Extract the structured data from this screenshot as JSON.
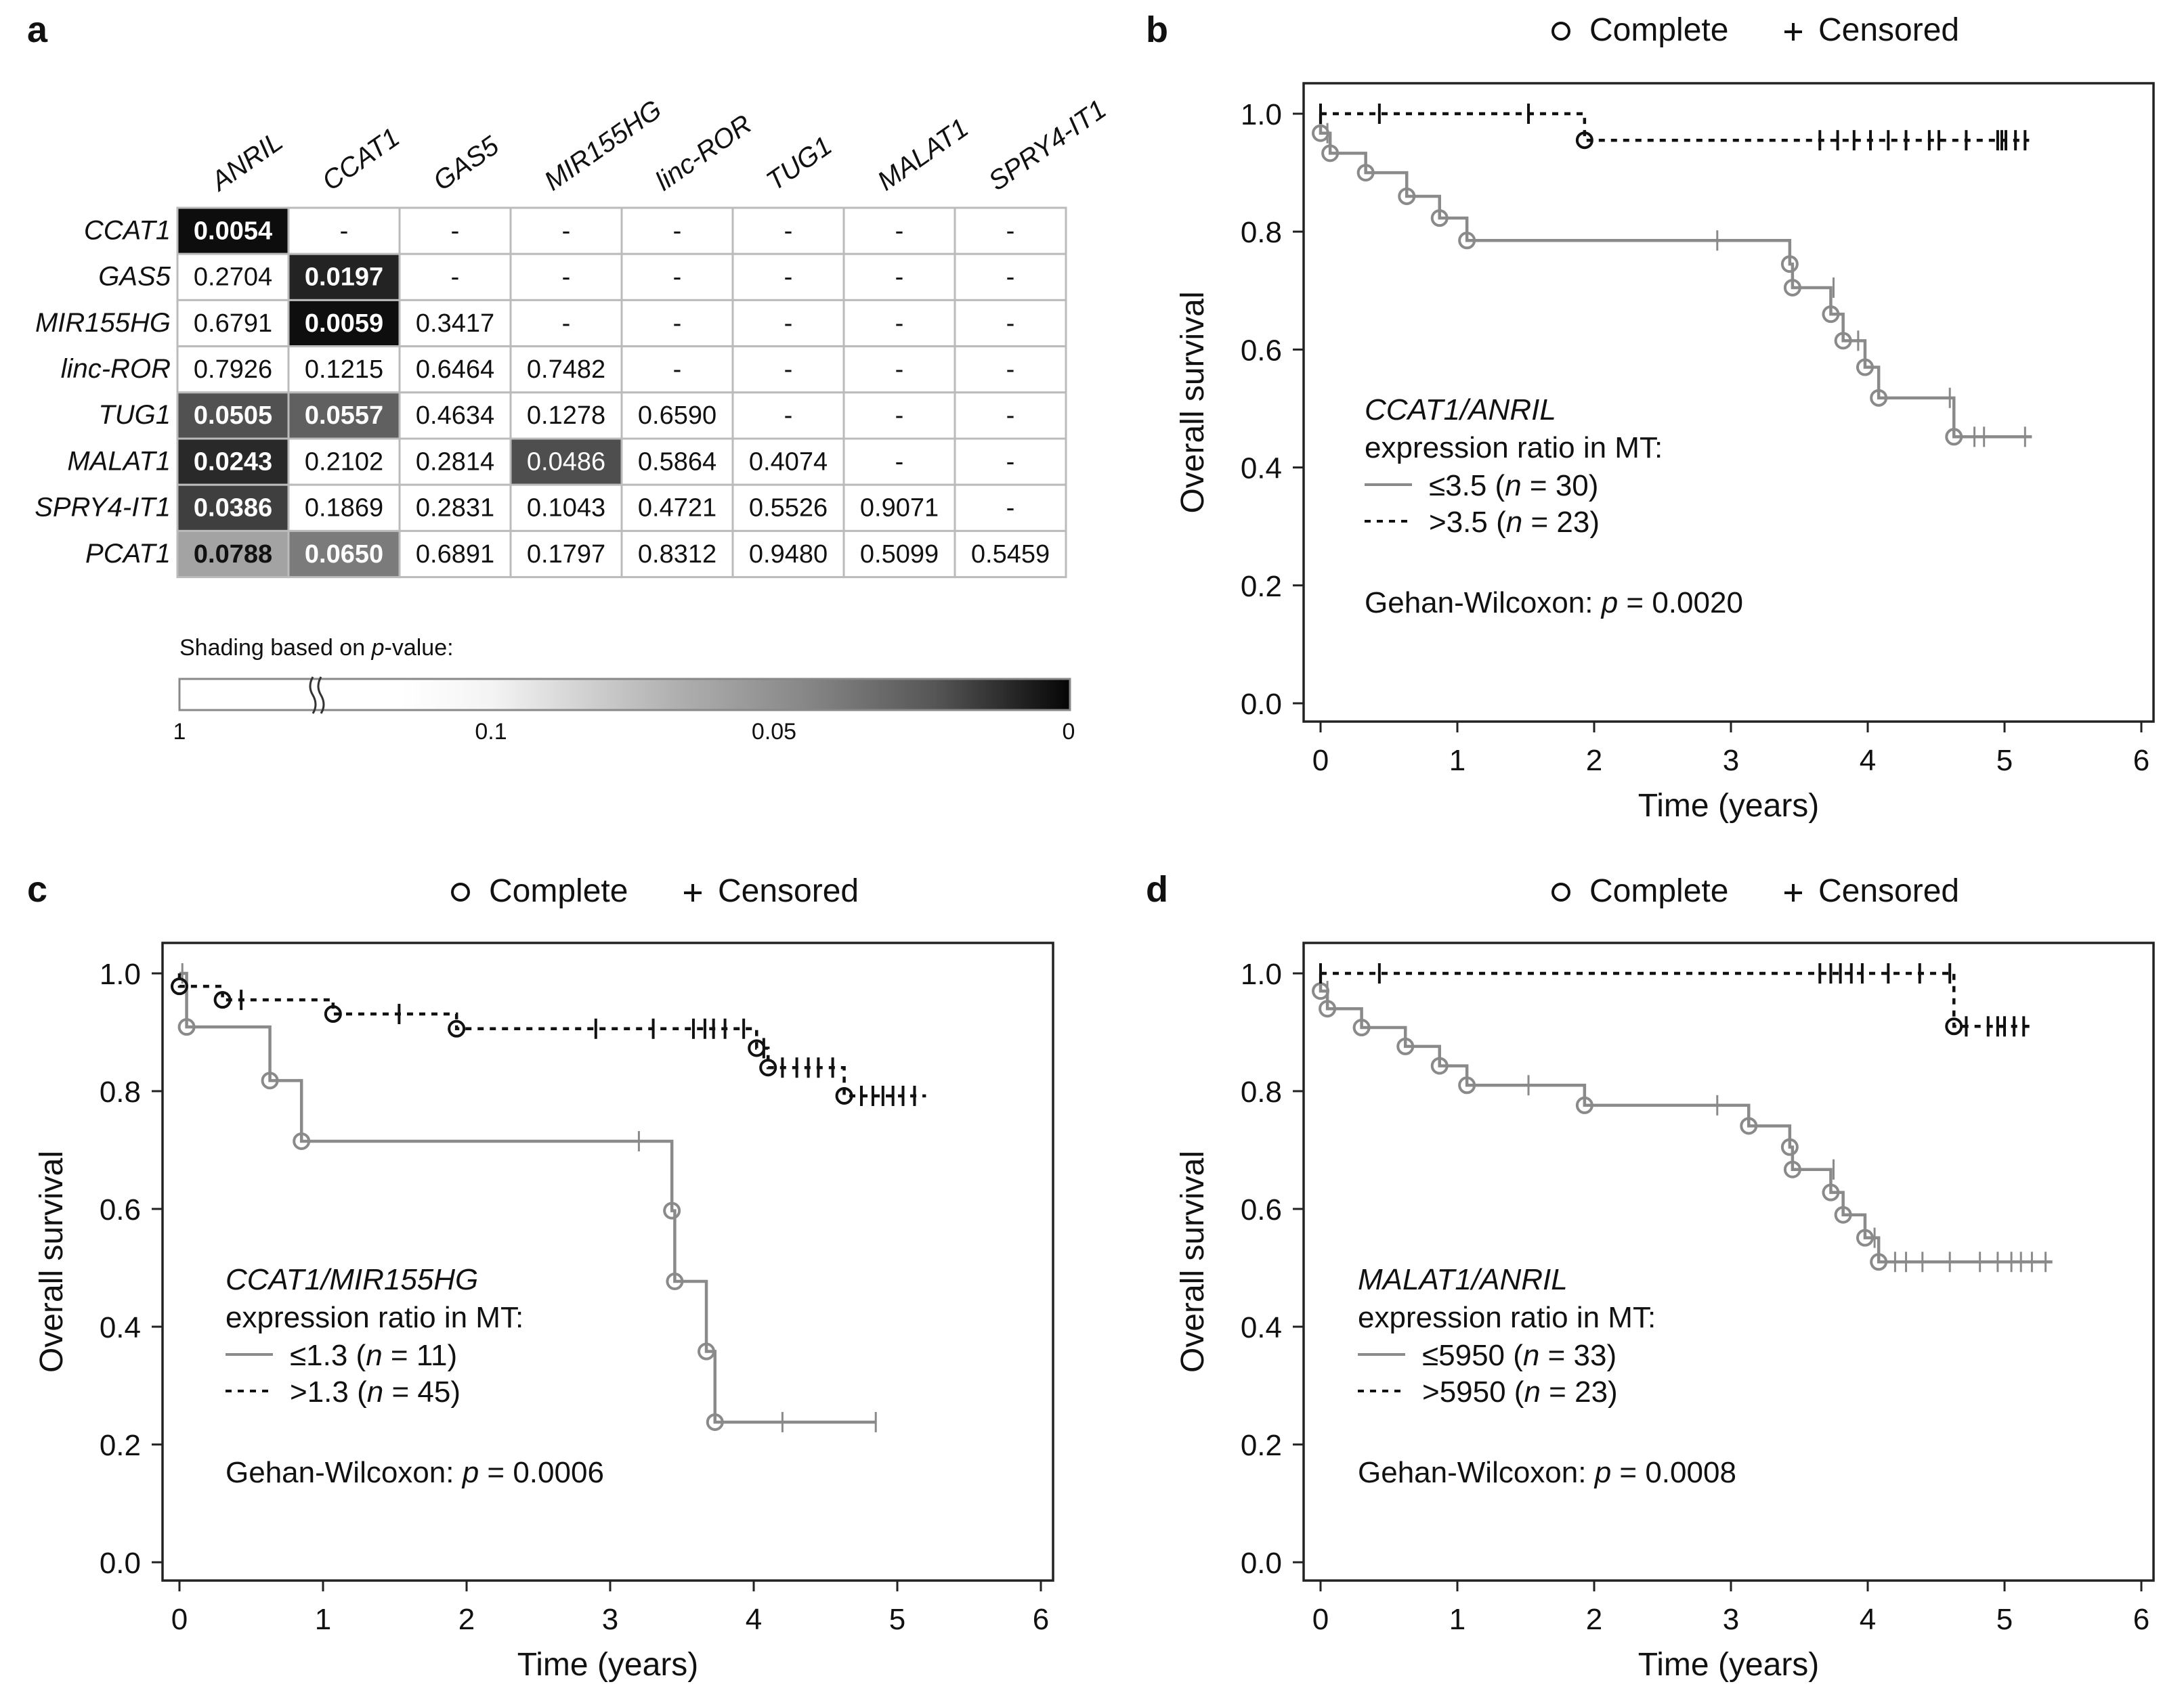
{
  "colors": {
    "low_group": "#8a8a8a",
    "high_group": "#111111",
    "axis": "#222222",
    "cell_border": "#bbbbbb",
    "text": "#111111"
  },
  "panel_a": {
    "label": "a",
    "column_headers": [
      "ANRIL",
      "CCAT1",
      "GAS5",
      "MIR155HG",
      "linc-ROR",
      "TUG1",
      "MALAT1",
      "SPRY4-IT1"
    ],
    "row_headers": [
      "CCAT1",
      "GAS5",
      "MIR155HG",
      "linc-ROR",
      "TUG1",
      "MALAT1",
      "SPRY4-IT1",
      "PCAT1"
    ],
    "cells": [
      [
        "0.0054",
        "-",
        "-",
        "-",
        "-",
        "-",
        "-",
        "-"
      ],
      [
        "0.2704",
        "0.0197",
        "-",
        "-",
        "-",
        "-",
        "-",
        "-"
      ],
      [
        "0.6791",
        "0.0059",
        "0.3417",
        "-",
        "-",
        "-",
        "-",
        "-"
      ],
      [
        "0.7926",
        "0.1215",
        "0.6464",
        "0.7482",
        "-",
        "-",
        "-",
        "-"
      ],
      [
        "0.0505",
        "0.0557",
        "0.4634",
        "0.1278",
        "0.6590",
        "-",
        "-",
        "-"
      ],
      [
        "0.0243",
        "0.2102",
        "0.2814",
        "0.0486",
        "0.5864",
        "0.4074",
        "-",
        "-"
      ],
      [
        "0.0386",
        "0.1869",
        "0.2831",
        "0.1043",
        "0.4721",
        "0.5526",
        "0.9071",
        "-"
      ],
      [
        "0.0788",
        "0.0650",
        "0.6891",
        "0.1797",
        "0.8312",
        "0.9480",
        "0.5099",
        "0.5459"
      ]
    ],
    "scale_title_prefix": "Shading based on ",
    "scale_title_var": "p",
    "scale_title_suffix": "-value:",
    "scale_ticks": [
      "1",
      "0.1",
      "0.05",
      "0"
    ]
  },
  "chart_data": [
    {
      "type": "line",
      "panel": "b",
      "title": "",
      "legend_complete": "Complete",
      "legend_censored": "Censored",
      "xlabel": "Time (years)",
      "ylabel": "Overall survival",
      "xlim": [
        0,
        6
      ],
      "ylim": [
        0,
        1
      ],
      "x_ticks": [
        0,
        1,
        2,
        3,
        4,
        5,
        6
      ],
      "y_ticks": [
        "0.0",
        "0.2",
        "0.4",
        "0.6",
        "0.8",
        "1.0"
      ],
      "annotation": {
        "ratio_name": "CCAT1/ANRIL",
        "ratio_label": "expression ratio in MT:",
        "low_label": "≤3.5 (",
        "low_n": "n",
        "low_rest": " = 30)",
        "high_label": ">3.5 (",
        "high_n": "n",
        "high_rest": " = 23)",
        "test_prefix": "Gehan-Wilcoxon: ",
        "test_p": "p",
        "test_rest": " = 0.0020"
      },
      "series": [
        {
          "name": "≤3.5 (n = 30)",
          "style": "solid",
          "steps": [
            [
              0,
              1
            ],
            [
              0,
              0.967
            ],
            [
              0.07,
              0.933
            ],
            [
              0.33,
              0.9
            ],
            [
              0.63,
              0.86
            ],
            [
              0.87,
              0.823
            ],
            [
              1.07,
              0.785
            ],
            [
              3.43,
              0.745
            ],
            [
              3.45,
              0.705
            ],
            [
              3.73,
              0.66
            ],
            [
              3.82,
              0.615
            ],
            [
              3.98,
              0.57
            ],
            [
              4.08,
              0.518
            ],
            [
              4.63,
              0.452
            ],
            [
              5.2,
              0.452
            ]
          ],
          "events": [
            [
              0,
              0.967
            ],
            [
              0.07,
              0.933
            ],
            [
              0.33,
              0.9
            ],
            [
              0.63,
              0.86
            ],
            [
              0.87,
              0.823
            ],
            [
              1.07,
              0.785
            ],
            [
              3.43,
              0.745
            ],
            [
              3.45,
              0.705
            ],
            [
              3.73,
              0.66
            ],
            [
              3.82,
              0.615
            ],
            [
              3.98,
              0.57
            ],
            [
              4.08,
              0.518
            ],
            [
              4.63,
              0.452
            ]
          ],
          "censored": [
            [
              0.05,
              0.967
            ],
            [
              2.9,
              0.785
            ],
            [
              3.75,
              0.705
            ],
            [
              3.93,
              0.615
            ],
            [
              4.6,
              0.518
            ],
            [
              4.78,
              0.452
            ],
            [
              4.85,
              0.452
            ],
            [
              5.15,
              0.452
            ]
          ]
        },
        {
          "name": ">3.5 (n = 23)",
          "style": "dashed",
          "steps": [
            [
              0,
              1
            ],
            [
              1.93,
              1
            ],
            [
              1.93,
              0.955
            ],
            [
              5.18,
              0.955
            ]
          ],
          "events": [
            [
              1.93,
              0.955
            ]
          ],
          "censored": [
            [
              0,
              1
            ],
            [
              0.43,
              1
            ],
            [
              1.52,
              1
            ],
            [
              3.65,
              0.955
            ],
            [
              3.78,
              0.955
            ],
            [
              3.9,
              0.955
            ],
            [
              4.02,
              0.955
            ],
            [
              4.15,
              0.955
            ],
            [
              4.28,
              0.955
            ],
            [
              4.45,
              0.955
            ],
            [
              4.52,
              0.955
            ],
            [
              4.72,
              0.955
            ],
            [
              4.95,
              0.955
            ],
            [
              4.98,
              0.955
            ],
            [
              5.01,
              0.955
            ],
            [
              5.08,
              0.955
            ],
            [
              5.15,
              0.955
            ]
          ]
        }
      ]
    },
    {
      "type": "line",
      "panel": "c",
      "title": "",
      "legend_complete": "Complete",
      "legend_censored": "Censored",
      "xlabel": "Time (years)",
      "ylabel": "Overall survival",
      "xlim": [
        0,
        6
      ],
      "ylim": [
        0,
        1
      ],
      "x_ticks": [
        0,
        1,
        2,
        3,
        4,
        5,
        6
      ],
      "y_ticks": [
        "0.0",
        "0.2",
        "0.4",
        "0.6",
        "0.8",
        "1.0"
      ],
      "annotation": {
        "ratio_name": "CCAT1/MIR155HG",
        "ratio_label": "expression ratio in MT:",
        "low_label": "≤1.3 (",
        "low_n": "n",
        "low_rest": " = 11)",
        "high_label": ">1.3 (",
        "high_n": "n",
        "high_rest": " = 45)",
        "test_prefix": "Gehan-Wilcoxon: ",
        "test_p": "p",
        "test_rest": " = 0.0006"
      },
      "series": [
        {
          "name": "≤1.3 (n = 11)",
          "style": "solid",
          "steps": [
            [
              0,
              1
            ],
            [
              0.05,
              0.909
            ],
            [
              0.63,
              0.818
            ],
            [
              0.85,
              0.715
            ],
            [
              3.43,
              0.597
            ],
            [
              3.45,
              0.477
            ],
            [
              3.67,
              0.358
            ],
            [
              3.73,
              0.238
            ],
            [
              4.85,
              0.238
            ]
          ],
          "events": [
            [
              0.05,
              0.909
            ],
            [
              0.63,
              0.818
            ],
            [
              0.85,
              0.715
            ],
            [
              3.43,
              0.597
            ],
            [
              3.45,
              0.477
            ],
            [
              3.67,
              0.358
            ],
            [
              3.73,
              0.238
            ]
          ],
          "censored": [
            [
              0.02,
              1
            ],
            [
              3.2,
              0.715
            ],
            [
              4.2,
              0.238
            ],
            [
              4.85,
              0.238
            ]
          ]
        },
        {
          "name": ">1.3 (n = 45)",
          "style": "dashed",
          "steps": [
            [
              0,
              1
            ],
            [
              0,
              0.978
            ],
            [
              0.3,
              0.955
            ],
            [
              1.07,
              0.931
            ],
            [
              1.93,
              0.906
            ],
            [
              4.02,
              0.873
            ],
            [
              4.1,
              0.84
            ],
            [
              4.63,
              0.792
            ],
            [
              5.2,
              0.792
            ]
          ],
          "events": [
            [
              0,
              0.978
            ],
            [
              0.3,
              0.955
            ],
            [
              1.07,
              0.931
            ],
            [
              1.93,
              0.906
            ],
            [
              4.02,
              0.873
            ],
            [
              4.1,
              0.84
            ],
            [
              4.63,
              0.792
            ]
          ],
          "censored": [
            [
              0.43,
              0.955
            ],
            [
              1.53,
              0.931
            ],
            [
              2.9,
              0.906
            ],
            [
              3.3,
              0.906
            ],
            [
              3.58,
              0.906
            ],
            [
              3.66,
              0.906
            ],
            [
              3.72,
              0.906
            ],
            [
              3.8,
              0.906
            ],
            [
              3.93,
              0.906
            ],
            [
              4.07,
              0.873
            ],
            [
              4.2,
              0.84
            ],
            [
              4.3,
              0.84
            ],
            [
              4.38,
              0.84
            ],
            [
              4.45,
              0.84
            ],
            [
              4.55,
              0.84
            ],
            [
              4.75,
              0.792
            ],
            [
              4.83,
              0.792
            ],
            [
              4.9,
              0.792
            ],
            [
              4.97,
              0.792
            ],
            [
              5.04,
              0.792
            ],
            [
              5.12,
              0.792
            ]
          ]
        }
      ]
    },
    {
      "type": "line",
      "panel": "d",
      "title": "",
      "legend_complete": "Complete",
      "legend_censored": "Censored",
      "xlabel": "Time (years)",
      "ylabel": "Overall survival",
      "xlim": [
        0,
        6
      ],
      "ylim": [
        0,
        1
      ],
      "x_ticks": [
        0,
        1,
        2,
        3,
        4,
        5,
        6
      ],
      "y_ticks": [
        "0.0",
        "0.2",
        "0.4",
        "0.6",
        "0.8",
        "1.0"
      ],
      "annotation": {
        "ratio_name": "MALAT1/ANRIL",
        "ratio_label": "expression ratio in MT:",
        "low_label": "≤5950 (",
        "low_n": "n",
        "low_rest": " = 33)",
        "high_label": ">5950 (",
        "high_n": "n",
        "high_rest": " = 23)",
        "test_prefix": "Gehan-Wilcoxon: ",
        "test_p": "p",
        "test_rest": " = 0.0008"
      },
      "series": [
        {
          "name": "≤5950 (n = 33)",
          "style": "solid",
          "steps": [
            [
              0,
              1
            ],
            [
              0,
              0.97
            ],
            [
              0.05,
              0.94
            ],
            [
              0.3,
              0.908
            ],
            [
              0.62,
              0.876
            ],
            [
              0.87,
              0.843
            ],
            [
              1.07,
              0.81
            ],
            [
              1.93,
              0.776
            ],
            [
              3.13,
              0.741
            ],
            [
              3.43,
              0.705
            ],
            [
              3.45,
              0.667
            ],
            [
              3.73,
              0.628
            ],
            [
              3.82,
              0.59
            ],
            [
              3.98,
              0.551
            ],
            [
              4.08,
              0.51
            ],
            [
              5.35,
              0.51
            ]
          ],
          "events": [
            [
              0,
              0.97
            ],
            [
              0.05,
              0.94
            ],
            [
              0.3,
              0.908
            ],
            [
              0.62,
              0.876
            ],
            [
              0.87,
              0.843
            ],
            [
              1.07,
              0.81
            ],
            [
              1.93,
              0.776
            ],
            [
              3.13,
              0.741
            ],
            [
              3.43,
              0.705
            ],
            [
              3.45,
              0.667
            ],
            [
              3.73,
              0.628
            ],
            [
              3.82,
              0.59
            ],
            [
              3.98,
              0.551
            ],
            [
              4.08,
              0.51
            ]
          ],
          "censored": [
            [
              0.05,
              0.97
            ],
            [
              1.52,
              0.81
            ],
            [
              2.9,
              0.776
            ],
            [
              3.75,
              0.667
            ],
            [
              4.05,
              0.551
            ],
            [
              4.2,
              0.51
            ],
            [
              4.28,
              0.51
            ],
            [
              4.4,
              0.51
            ],
            [
              4.6,
              0.51
            ],
            [
              4.82,
              0.51
            ],
            [
              4.95,
              0.51
            ],
            [
              5.05,
              0.51
            ],
            [
              5.12,
              0.51
            ],
            [
              5.2,
              0.51
            ],
            [
              5.3,
              0.51
            ]
          ]
        },
        {
          "name": ">5950 (n = 23)",
          "style": "dashed",
          "steps": [
            [
              0,
              1
            ],
            [
              4.63,
              1
            ],
            [
              4.63,
              0.91
            ],
            [
              5.2,
              0.91
            ]
          ],
          "events": [
            [
              4.63,
              0.91
            ]
          ],
          "censored": [
            [
              0,
              1
            ],
            [
              0.43,
              1
            ],
            [
              3.65,
              1
            ],
            [
              3.73,
              1
            ],
            [
              3.8,
              1
            ],
            [
              3.88,
              1
            ],
            [
              3.96,
              1
            ],
            [
              4.15,
              1
            ],
            [
              4.38,
              1
            ],
            [
              4.6,
              1
            ],
            [
              4.72,
              0.91
            ],
            [
              4.88,
              0.91
            ],
            [
              4.95,
              0.91
            ],
            [
              5.0,
              0.91
            ],
            [
              5.07,
              0.91
            ],
            [
              5.14,
              0.91
            ]
          ]
        }
      ]
    }
  ]
}
